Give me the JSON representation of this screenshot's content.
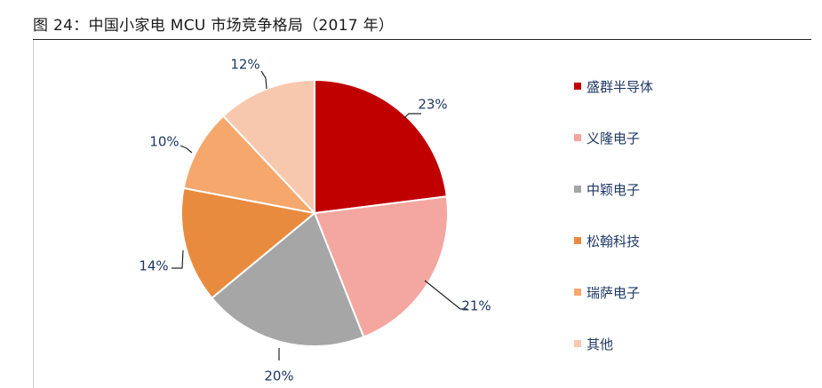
{
  "figure": {
    "title": "图 24：中国小家电 MCU 市场竞争格局（2017 年）"
  },
  "chart_data": {
    "type": "pie",
    "title": "",
    "start_angle_deg": 0,
    "direction": "clockwise",
    "legend_position": "right",
    "slices": [
      {
        "label": "盛群半导体",
        "value": 23,
        "value_label": "23%",
        "color": "#c00000"
      },
      {
        "label": "义隆电子",
        "value": 21,
        "value_label": "21%",
        "color": "#f4a6a0"
      },
      {
        "label": "中颖电子",
        "value": 20,
        "value_label": "20%",
        "color": "#a6a6a6"
      },
      {
        "label": "松翰科技",
        "value": 14,
        "value_label": "14%",
        "color": "#e98b3f"
      },
      {
        "label": "瑞萨电子",
        "value": 10,
        "value_label": "10%",
        "color": "#f5a76c"
      },
      {
        "label": "其他",
        "value": 12,
        "value_label": "12%",
        "color": "#f8c8ae"
      }
    ]
  }
}
